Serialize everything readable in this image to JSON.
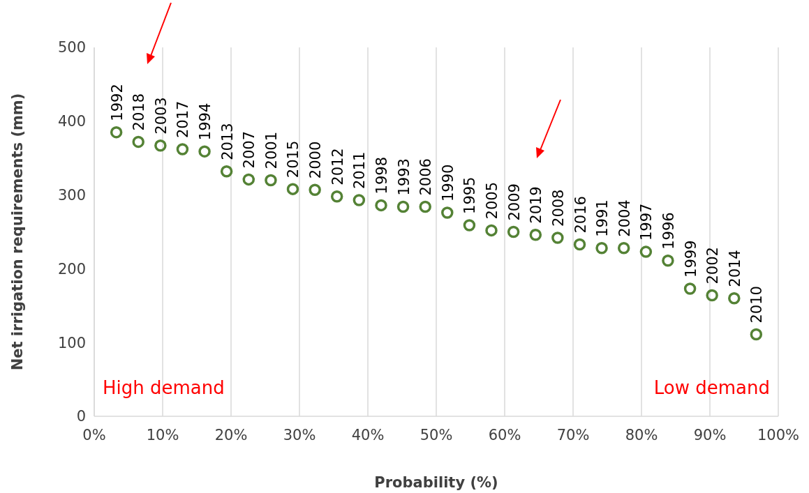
{
  "chart_data": {
    "type": "scatter",
    "xlabel": "Probability (%)",
    "ylabel": "Net irrigation requirements (mm)",
    "x": [
      3.23,
      6.45,
      9.68,
      12.9,
      16.13,
      19.35,
      22.58,
      25.81,
      29.03,
      32.26,
      35.48,
      38.71,
      41.94,
      45.16,
      48.39,
      51.61,
      54.84,
      58.06,
      61.29,
      64.52,
      67.74,
      70.97,
      74.19,
      77.42,
      80.65,
      83.87,
      87.1,
      90.32,
      93.55,
      96.77
    ],
    "series": [
      {
        "color": "#548235",
        "values": [
          385,
          372,
          367,
          362,
          359,
          332,
          321,
          320,
          308,
          307,
          298,
          293,
          286,
          284,
          284,
          276,
          259,
          252,
          250,
          246,
          242,
          233,
          228,
          228,
          223,
          211,
          173,
          164,
          160,
          111
        ]
      }
    ],
    "xlim": [
      0,
      100
    ],
    "ylim": [
      0,
      500
    ],
    "xticks": [
      {
        "value": 0,
        "label": "0%"
      },
      {
        "value": 10,
        "label": "10%"
      },
      {
        "value": 20,
        "label": "20%"
      },
      {
        "value": 30,
        "label": "30%"
      },
      {
        "value": 40,
        "label": "40%"
      },
      {
        "value": 50,
        "label": "50%"
      },
      {
        "value": 60,
        "label": "60%"
      },
      {
        "value": 70,
        "label": "70%"
      },
      {
        "value": 80,
        "label": "80%"
      },
      {
        "value": 90,
        "label": "90%"
      },
      {
        "value": 100,
        "label": "100%"
      }
    ],
    "yticks": [
      0,
      100,
      200,
      300,
      400,
      500
    ],
    "grid": "x",
    "marker": "circle",
    "annotations": [
      "High demand",
      "Low demand",
      {
        "text": "1992",
        "x": 3.23,
        "y": 385
      },
      {
        "text": "2018",
        "x": 6.45,
        "y": 372
      },
      {
        "text": "2003",
        "x": 9.68,
        "y": 367
      },
      {
        "text": "2017",
        "x": 12.9,
        "y": 362
      },
      {
        "text": "1994",
        "x": 16.13,
        "y": 359
      },
      {
        "text": "2013",
        "x": 19.35,
        "y": 332
      },
      {
        "text": "2007",
        "x": 22.58,
        "y": 321
      },
      {
        "text": "2001",
        "x": 25.81,
        "y": 320
      },
      {
        "text": "2015",
        "x": 29.03,
        "y": 308
      },
      {
        "text": "2000",
        "x": 32.26,
        "y": 307
      },
      {
        "text": "2012",
        "x": 35.48,
        "y": 298
      },
      {
        "text": "2011",
        "x": 38.71,
        "y": 293
      },
      {
        "text": "1998",
        "x": 41.94,
        "y": 286
      },
      {
        "text": "1993",
        "x": 45.16,
        "y": 284
      },
      {
        "text": "2006",
        "x": 48.39,
        "y": 284
      },
      {
        "text": "1990",
        "x": 51.61,
        "y": 276
      },
      {
        "text": "1995",
        "x": 54.84,
        "y": 259
      },
      {
        "text": "2005",
        "x": 58.06,
        "y": 252
      },
      {
        "text": "2009",
        "x": 61.29,
        "y": 250
      },
      {
        "text": "2019",
        "x": 64.52,
        "y": 246
      },
      {
        "text": "2008",
        "x": 67.74,
        "y": 242
      },
      {
        "text": "2016",
        "x": 70.97,
        "y": 233
      },
      {
        "text": "1991",
        "x": 74.19,
        "y": 228
      },
      {
        "text": "2004",
        "x": 77.42,
        "y": 228
      },
      {
        "text": "1997",
        "x": 80.65,
        "y": 223
      },
      {
        "text": "1996",
        "x": 83.87,
        "y": 211
      },
      {
        "text": "1999",
        "x": 87.1,
        "y": 173
      },
      {
        "text": "2002",
        "x": 90.32,
        "y": 164
      },
      {
        "text": "2014",
        "x": 93.55,
        "y": 160
      },
      {
        "text": "2010",
        "x": 96.77,
        "y": 111
      }
    ]
  }
}
